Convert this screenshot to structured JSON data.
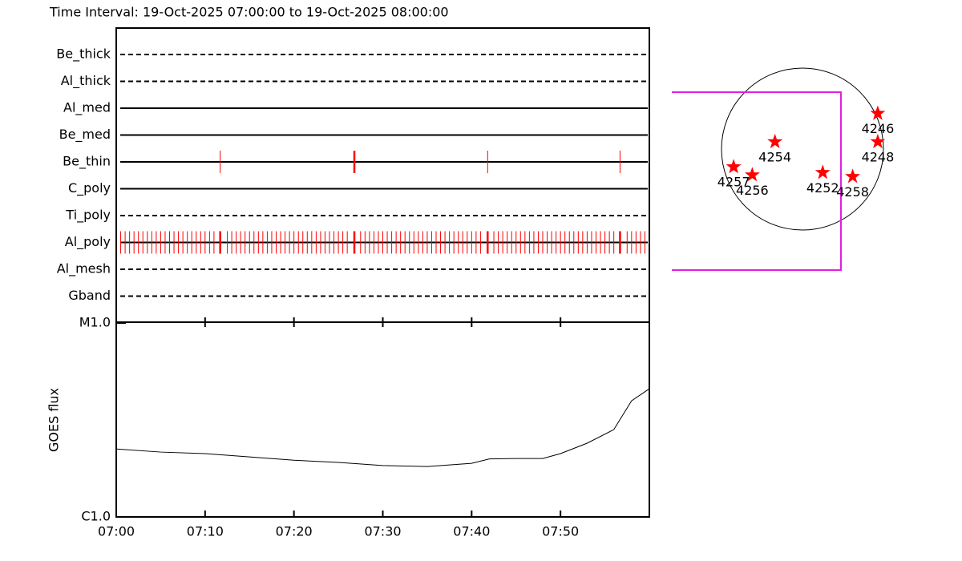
{
  "title": "Time Interval: 19-Oct-2025 07:00:00 to 19-Oct-2025 08:00:00",
  "chart_data": [
    {
      "type": "timeline",
      "xlim": [
        0,
        60
      ],
      "rows": [
        {
          "name": "Be_thick",
          "style": "dashed",
          "events": [],
          "long_events": []
        },
        {
          "name": "Al_thick",
          "style": "dashed",
          "events": [],
          "long_events": []
        },
        {
          "name": "Al_med",
          "style": "solid",
          "events": [],
          "long_events": []
        },
        {
          "name": "Be_med",
          "style": "solid",
          "events": [],
          "long_events": []
        },
        {
          "name": "Be_thin",
          "style": "solid",
          "events": [
            11.7,
            41.8,
            56.7
          ],
          "long_events": [
            26.8
          ]
        },
        {
          "name": "C_poly",
          "style": "solid",
          "events": [],
          "long_events": []
        },
        {
          "name": "Ti_poly",
          "style": "dashed",
          "events": [],
          "long_events": []
        },
        {
          "name": "Al_poly",
          "style": "solid",
          "events": [
            0.5,
            1,
            1.5,
            2,
            2.5,
            3,
            3.5,
            4,
            4.5,
            5,
            5.5,
            6,
            6.5,
            7,
            7.5,
            8,
            8.5,
            9,
            9.5,
            10,
            10.5,
            11,
            12.5,
            13,
            13.5,
            14,
            14.5,
            15,
            15.5,
            16,
            16.5,
            17,
            17.5,
            18,
            18.5,
            19,
            19.5,
            20,
            20.5,
            21,
            21.5,
            22,
            22.5,
            23,
            23.5,
            24,
            24.5,
            25,
            25.5,
            26,
            27.5,
            28,
            28.5,
            29,
            29.5,
            30,
            30.5,
            31,
            31.5,
            32,
            32.5,
            33,
            33.5,
            34,
            34.5,
            35,
            35.5,
            36,
            36.5,
            37,
            37.5,
            38,
            38.5,
            39,
            39.5,
            40,
            40.5,
            41,
            42.5,
            43,
            43.5,
            44,
            44.5,
            45,
            45.5,
            46,
            46.5,
            47,
            47.5,
            48,
            48.5,
            49,
            49.5,
            50,
            50.5,
            51,
            51.5,
            52,
            52.5,
            53,
            53.5,
            54,
            54.5,
            55,
            55.5,
            56,
            57.5,
            58,
            58.5,
            59,
            59.5
          ],
          "long_events": [
            11.7,
            26.8,
            41.8,
            56.7
          ]
        },
        {
          "name": "Al_mesh",
          "style": "dashed",
          "events": [],
          "long_events": []
        },
        {
          "name": "Gband",
          "style": "dashed",
          "events": [],
          "long_events": []
        }
      ],
      "event_color": "#ff0000"
    },
    {
      "type": "line",
      "ylabel": "GOES flux",
      "x": [
        0,
        5,
        10,
        15,
        20,
        25,
        30,
        35,
        40,
        42,
        45,
        48,
        50,
        53,
        56,
        58,
        60
      ],
      "values": [
        2.24e-06,
        2.16e-06,
        2.12e-06,
        2.04e-06,
        1.96e-06,
        1.91e-06,
        1.84e-06,
        1.82e-06,
        1.89e-06,
        1.99e-06,
        2e-06,
        2e-06,
        2.12e-06,
        2.4e-06,
        2.82e-06,
        3.97e-06,
        4.58e-06
      ],
      "color": "#000000",
      "log_y": true,
      "xlim": [
        0,
        60
      ],
      "ylim": [
        1e-06,
        1e-05
      ],
      "xticks": [
        {
          "value": 0,
          "label": "07:00"
        },
        {
          "value": 10,
          "label": "07:10"
        },
        {
          "value": 20,
          "label": "07:20"
        },
        {
          "value": 30,
          "label": "07:30"
        },
        {
          "value": 40,
          "label": "07:40"
        },
        {
          "value": 50,
          "label": "07:50"
        }
      ],
      "yticks": [
        {
          "value": 1e-06,
          "label": "C1.0"
        },
        {
          "value": 1e-05,
          "label": "M1.0"
        }
      ]
    },
    {
      "type": "scatter",
      "marker": "star",
      "color": "#ff0000",
      "labels": [
        "4246",
        "4248",
        "4254",
        "4257",
        "4256",
        "4252",
        "4258"
      ],
      "x": [
        0.93,
        0.93,
        -0.34,
        -0.85,
        -0.62,
        0.25,
        0.62
      ],
      "values": [
        0.44,
        0.09,
        0.09,
        -0.22,
        -0.32,
        -0.29,
        -0.34
      ]
    }
  ]
}
